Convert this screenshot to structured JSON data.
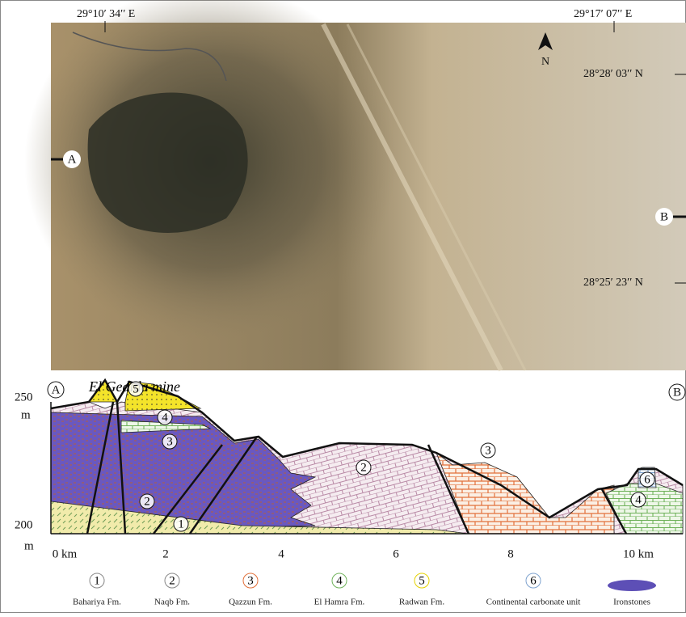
{
  "map": {
    "coordinates": [
      "29°10′ 34′′ E",
      "29°17′ 07′′ E",
      "28°28′ 03′′ N",
      "28°25′ 23′′ N"
    ],
    "north": "N",
    "points": [
      "A",
      "B"
    ]
  },
  "section": {
    "title": "El Gedida mine",
    "ends": [
      "A",
      "B"
    ],
    "y_labels": [
      {
        "value": "250",
        "unit": "m"
      },
      {
        "value": "200",
        "unit": "m"
      }
    ],
    "x_labels": [
      "0 km",
      "2",
      "4",
      "6",
      "8",
      "10 km"
    ],
    "unit_labels": [
      "5",
      "4",
      "3",
      "2",
      "1",
      "2",
      "3",
      "6",
      "4"
    ]
  },
  "legend": [
    {
      "number": "1",
      "name": "Bahariya Fm."
    },
    {
      "number": "2",
      "name": "Naqb Fm."
    },
    {
      "number": "3",
      "name": "Qazzun Fm."
    },
    {
      "number": "4",
      "name": "El Hamra Fm."
    },
    {
      "number": "5",
      "name": "Radwan Fm."
    },
    {
      "number": "6",
      "name": "Continental carbonate unit"
    },
    {
      "number": null,
      "name": "Ironstones"
    }
  ]
}
